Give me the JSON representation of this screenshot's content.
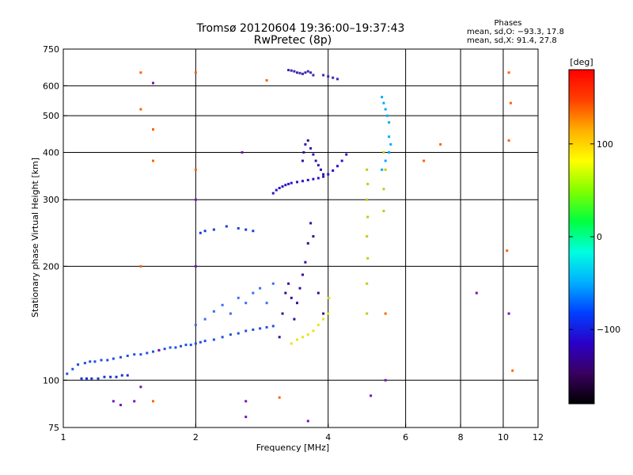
{
  "title": "Tromsø 20120604 19:36:00–19:37:43",
  "subtitle": "RwPretec (8p)",
  "phases": {
    "heading": "Phases",
    "line1": "mean, sd,O: −93.3, 17.8",
    "line2": "mean, sd,X:  91.4, 27.8"
  },
  "chart_data": {
    "type": "scatter",
    "xlabel": "Frequency [MHz]",
    "ylabel": "Stationary phase Virtual Height [km]",
    "x_scale": "log",
    "y_scale": "log",
    "xlim": [
      1,
      12
    ],
    "ylim": [
      75,
      750
    ],
    "x_ticks": [
      "1",
      "2",
      "4",
      "6",
      "8",
      "10",
      "12"
    ],
    "x_tick_values": [
      1,
      2,
      4,
      6,
      8,
      10,
      12
    ],
    "x_grid": [
      2,
      4,
      6,
      8,
      10
    ],
    "y_ticks": [
      "75",
      "100",
      "200",
      "300",
      "400",
      "500",
      "600",
      "750"
    ],
    "y_tick_values": [
      75,
      100,
      200,
      300,
      400,
      500,
      600,
      750
    ],
    "y_grid": [
      100,
      200,
      300,
      400,
      500,
      600
    ],
    "grid": true,
    "colorbar": {
      "label": "[deg]",
      "range": [
        -180,
        180
      ],
      "ticks": [
        "100",
        "0",
        "−100"
      ],
      "tick_values": [
        100,
        0,
        -100
      ],
      "colors": [
        "#000000",
        "#3a0060",
        "#2a00c8",
        "#0040ff",
        "#00b0ff",
        "#00ffe0",
        "#00ff40",
        "#80ff00",
        "#ffff00",
        "#ffb000",
        "#ff4000",
        "#ff0000"
      ]
    },
    "series": [
      {
        "color": "#1e50e6",
        "x": [
          1.02,
          1.05,
          1.08,
          1.12,
          1.15,
          1.18,
          1.22,
          1.26,
          1.3,
          1.35,
          1.4,
          1.45,
          1.5,
          1.55,
          1.6,
          1.65,
          1.7,
          1.75,
          1.8,
          1.85,
          1.9,
          1.95,
          2.0,
          2.05,
          2.1,
          2.2,
          2.3,
          2.4,
          2.5,
          2.6,
          2.7,
          2.8,
          2.9,
          3.0
        ],
        "y": [
          104,
          107,
          110,
          111,
          112,
          112,
          113,
          113,
          114,
          115,
          116,
          117,
          117,
          118,
          119,
          120,
          121,
          122,
          122,
          123,
          124,
          124,
          125,
          126,
          127,
          128,
          130,
          132,
          133,
          135,
          136,
          137,
          138,
          139
        ]
      },
      {
        "color": "#1430d2",
        "x": [
          1.1,
          1.13,
          1.16,
          1.2,
          1.24,
          1.28,
          1.32,
          1.36,
          1.4
        ],
        "y": [
          101,
          101,
          101,
          101,
          102,
          102,
          102,
          103,
          103
        ]
      },
      {
        "color": "#3c6ef0",
        "x": [
          2.0,
          2.1,
          2.2,
          2.3,
          2.4,
          2.5,
          2.6,
          2.7,
          2.8,
          2.9,
          3.0
        ],
        "y": [
          140,
          145,
          152,
          158,
          150,
          165,
          160,
          170,
          175,
          160,
          180
        ]
      },
      {
        "color": "#1e3cd2",
        "x": [
          2.05,
          2.1,
          2.2,
          2.35,
          2.5,
          2.6,
          2.7
        ],
        "y": [
          245,
          248,
          250,
          255,
          252,
          250,
          248
        ]
      },
      {
        "color": "#3a0a90",
        "x": [
          3.1,
          3.15,
          3.2,
          3.25,
          3.3,
          3.35,
          3.4,
          3.45,
          3.5,
          3.55,
          3.6,
          3.65,
          3.7,
          3.8,
          3.9
        ],
        "y": [
          130,
          150,
          170,
          180,
          165,
          145,
          160,
          175,
          190,
          205,
          230,
          260,
          240,
          170,
          150
        ]
      },
      {
        "color": "#e6e614",
        "x": [
          3.3,
          3.4,
          3.5,
          3.6,
          3.7,
          3.8,
          3.9,
          4.0,
          4.02
        ],
        "y": [
          125,
          128,
          130,
          132,
          135,
          140,
          145,
          150,
          165
        ]
      },
      {
        "color": "#2a14c8",
        "x": [
          3.0,
          3.05,
          3.1,
          3.15,
          3.2,
          3.25,
          3.3,
          3.4,
          3.5,
          3.6,
          3.7,
          3.8,
          3.9,
          4.0,
          4.1,
          4.2,
          4.3,
          4.4
        ],
        "y": [
          312,
          318,
          322,
          325,
          328,
          330,
          332,
          334,
          336,
          338,
          340,
          342,
          345,
          350,
          358,
          368,
          380,
          395
        ]
      },
      {
        "color": "#3214a8",
        "x": [
          3.5,
          3.52,
          3.55,
          3.6,
          3.65,
          3.7,
          3.75,
          3.8,
          3.85,
          3.9
        ],
        "y": [
          380,
          400,
          420,
          430,
          410,
          395,
          380,
          370,
          360,
          350
        ]
      },
      {
        "color": "#3c28b4",
        "x": [
          3.25,
          3.3,
          3.35,
          3.4,
          3.45,
          3.5,
          3.55,
          3.6,
          3.65,
          3.7,
          3.9,
          4.0,
          4.1,
          4.2
        ],
        "y": [
          660,
          658,
          655,
          650,
          648,
          645,
          650,
          655,
          650,
          640,
          640,
          635,
          630,
          625
        ]
      },
      {
        "color": "#00aaff",
        "x": [
          5.3,
          5.35,
          5.4,
          5.45,
          5.5,
          5.5,
          5.55,
          5.5,
          5.4,
          5.3
        ],
        "y": [
          560,
          540,
          520,
          500,
          480,
          440,
          420,
          400,
          380,
          360
        ]
      },
      {
        "color": "#c8c814",
        "x": [
          4.9,
          4.9,
          4.92,
          4.9,
          4.92,
          4.9,
          4.92,
          4.9,
          5.35,
          5.35,
          5.4,
          5.35
        ],
        "y": [
          150,
          180,
          210,
          240,
          270,
          300,
          330,
          360,
          280,
          320,
          360,
          400
        ]
      },
      {
        "color": "#ff6400",
        "x": [
          1.5,
          1.5,
          1.6,
          1.6,
          2.0,
          2.0,
          2.9,
          3.1,
          6.6,
          7.2,
          10.3,
          10.4,
          10.3,
          10.2,
          1.5,
          5.4,
          10.5,
          1.6
        ],
        "y": [
          650,
          520,
          460,
          380,
          650,
          360,
          620,
          90,
          380,
          420,
          650,
          540,
          430,
          220,
          200,
          150,
          106,
          88
        ]
      },
      {
        "color": "#7814b4",
        "x": [
          1.3,
          1.35,
          1.45,
          1.5,
          1.65,
          2.0,
          2.6,
          2.6,
          3.6,
          5.0,
          5.4,
          8.7,
          10.3,
          1.6,
          2.0,
          2.55
        ],
        "y": [
          88,
          86,
          88,
          96,
          120,
          200,
          80,
          88,
          78,
          91,
          100,
          170,
          150,
          610,
          300,
          400
        ]
      }
    ]
  }
}
